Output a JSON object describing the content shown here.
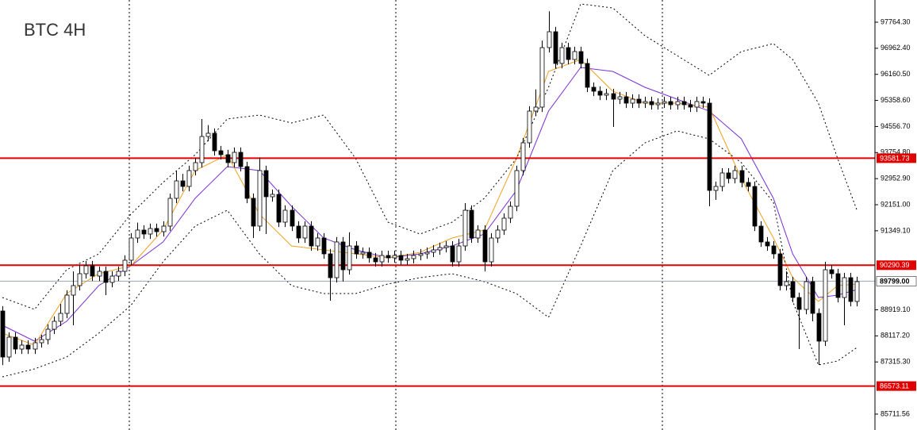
{
  "chart_data": {
    "type": "candlestick",
    "title": "BTC 4H",
    "open": [
      88882,
      87467,
      88077,
      87711,
      87833,
      87711,
      87906,
      88004,
      88321,
      88565,
      88809,
      89370,
      89663,
      90029,
      90273,
      89956,
      90102,
      89761,
      89956,
      90102,
      90444,
      91127,
      91371,
      91249,
      91420,
      91322,
      91493,
      92347,
      92884,
      92713,
      93201,
      93445,
      94250,
      94348,
      93811,
      93689,
      93445,
      93762,
      93323,
      92347,
      91493,
      93201,
      92396,
      92469,
      91615,
      91981,
      91493,
      91127,
      91493,
      90883,
      91127,
      90639,
      89907,
      91005,
      90151,
      90883,
      90639,
      90688,
      90517,
      90395,
      90590,
      90517,
      90590,
      90444,
      90493,
      90590,
      90639,
      90688,
      90761,
      90834,
      90883,
      90395,
      90883,
      91981,
      91127,
      91371,
      90395,
      91127,
      91371,
      91737,
      92103,
      93201,
      94055,
      95031,
      95153,
      96983,
      97471,
      96495,
      96983,
      96617,
      96861,
      96495,
      95763,
      95641,
      95519,
      95568,
      95397,
      95470,
      95275,
      95397,
      95275,
      95324,
      95226,
      95275,
      95324,
      95226,
      95324,
      95226,
      95153,
      95324,
      95275,
      92591,
      92713,
      93128,
      92957,
      93201,
      92835,
      92713,
      91493,
      91005,
      90883,
      90639,
      89663,
      89785,
      89297,
      88931,
      89785,
      88809,
      87955,
      90151,
      90029,
      89297,
      89907,
      89175
    ],
    "high": [
      89032,
      88227,
      88227,
      87983,
      87983,
      88056,
      88154,
      88471,
      88715,
      89100,
      89520,
      90100,
      90300,
      90423,
      90423,
      90252,
      90252,
      90106,
      90252,
      90594,
      91277,
      91600,
      91521,
      91570,
      91570,
      91643,
      92497,
      93201,
      93100,
      93351,
      93595,
      94787,
      94600,
      94498,
      93961,
      93839,
      93912,
      93912,
      93473,
      92497,
      93600,
      93351,
      92619,
      92619,
      92131,
      92131,
      91643,
      91643,
      91643,
      91277,
      91277,
      90789,
      91155,
      91155,
      91300,
      91033,
      90838,
      90838,
      90667,
      90740,
      90740,
      90740,
      90740,
      90643,
      90740,
      90789,
      90838,
      90911,
      90984,
      91033,
      91033,
      91100,
      92200,
      92131,
      91521,
      91521,
      91277,
      91521,
      91887,
      92253,
      93351,
      94205,
      95181,
      95700,
      97200,
      98100,
      97621,
      97133,
      97133,
      97011,
      97011,
      96645,
      95913,
      95791,
      95718,
      95718,
      95620,
      95620,
      95547,
      95547,
      95474,
      95474,
      95425,
      95474,
      95474,
      95474,
      95474,
      95376,
      95474,
      95474,
      95425,
      92863,
      93278,
      93278,
      93351,
      93351,
      92985,
      92863,
      91643,
      91155,
      91033,
      90789,
      90100,
      89935,
      89447,
      89935,
      89935,
      88959,
      90395,
      90301,
      90179,
      90057,
      90057,
      89935
    ],
    "low": [
      87217,
      87317,
      87561,
      87561,
      87561,
      87561,
      87756,
      87854,
      88171,
      88415,
      88659,
      88443,
      89513,
      89879,
      89806,
      89806,
      89370,
      89611,
      89806,
      89952,
      90294,
      90977,
      91099,
      91099,
      91172,
      91172,
      91343,
      92197,
      92563,
      92563,
      93051,
      93295,
      94100,
      93661,
      93539,
      93295,
      93295,
      93173,
      92197,
      91127,
      91343,
      91249,
      92246,
      91465,
      91465,
      91343,
      90977,
      90977,
      90733,
      90733,
      90489,
      89200,
      89757,
      89785,
      90001,
      90489,
      90489,
      90367,
      90245,
      90245,
      90367,
      90367,
      90294,
      90294,
      90343,
      90440,
      90489,
      90538,
      90611,
      90684,
      90245,
      90245,
      90733,
      90977,
      90977,
      90100,
      90245,
      90977,
      91221,
      91587,
      91953,
      93051,
      93905,
      94881,
      95003,
      96833,
      96345,
      96345,
      96467,
      96467,
      96345,
      95613,
      95491,
      95369,
      95369,
      94543,
      95247,
      95125,
      95125,
      95125,
      95125,
      95076,
      95076,
      95125,
      95076,
      95076,
      95076,
      95003,
      95003,
      95125,
      92103,
      92300,
      92563,
      92807,
      92807,
      92685,
      92563,
      91343,
      90855,
      90733,
      90489,
      89513,
      89513,
      89147,
      87711,
      88781,
      88565,
      87223,
      87805,
      89879,
      89147,
      88443,
      89025,
      89025
    ],
    "close": [
      87467,
      88077,
      87711,
      87833,
      87711,
      87906,
      88004,
      88321,
      88565,
      88809,
      89370,
      89663,
      90029,
      90273,
      89956,
      90102,
      89761,
      89956,
      90102,
      90444,
      91127,
      91371,
      91249,
      91420,
      91322,
      91493,
      92347,
      92884,
      92713,
      93201,
      93445,
      94250,
      94348,
      93811,
      93689,
      93445,
      93762,
      93323,
      92347,
      91493,
      93201,
      92396,
      92469,
      91615,
      91981,
      91493,
      91127,
      91493,
      90883,
      91127,
      90639,
      89907,
      91005,
      90151,
      90883,
      90639,
      90688,
      90517,
      90395,
      90590,
      90517,
      90590,
      90444,
      90493,
      90590,
      90639,
      90688,
      90761,
      90834,
      90883,
      90395,
      90883,
      91981,
      91127,
      91371,
      90395,
      91127,
      91371,
      91737,
      92103,
      93201,
      94055,
      95031,
      95153,
      96983,
      97471,
      96495,
      96983,
      96617,
      96861,
      96495,
      95763,
      95641,
      95519,
      95568,
      95397,
      95470,
      95275,
      95397,
      95275,
      95324,
      95226,
      95275,
      95324,
      95226,
      95324,
      95226,
      95153,
      95324,
      95275,
      92591,
      92713,
      93128,
      92957,
      93201,
      92835,
      92713,
      91493,
      91005,
      90883,
      90639,
      89663,
      89785,
      89297,
      88931,
      89785,
      88809,
      87955,
      90151,
      90029,
      89297,
      89907,
      89175,
      89785
    ],
    "up_color": "#ffffff",
    "down_color": "#000000",
    "overlay_x": [
      0,
      5,
      10,
      15,
      20,
      25,
      30,
      35,
      40,
      45,
      50,
      55,
      60,
      65,
      70,
      75,
      80,
      85,
      90,
      95,
      100,
      105,
      110,
      115,
      120,
      123,
      127,
      130,
      133
    ],
    "overlays": [
      {
        "color": "#7b2fd6",
        "style": "solid",
        "values": [
          88443,
          87955,
          88565,
          89663,
          90273,
          91005,
          92347,
          93323,
          93201,
          92103,
          91127,
          90761,
          90517,
          90639,
          90883,
          91249,
          92591,
          95031,
          96373,
          96251,
          95763,
          95397,
          95031,
          94177,
          92347,
          90639,
          89297,
          89370,
          89541
        ]
      },
      {
        "color": "#f0a020",
        "style": "solid",
        "values": [
          88199,
          87833,
          89419,
          90029,
          90273,
          91371,
          93201,
          93689,
          91859,
          90883,
          90761,
          90639,
          90517,
          90688,
          91127,
          91371,
          93567,
          96251,
          96617,
          95641,
          95275,
          95275,
          95153,
          92957,
          91127,
          89907,
          89175,
          89663,
          89712
        ]
      },
      {
        "color": "#000000",
        "style": "dotted",
        "values": [
          89297,
          88931,
          90151,
          90639,
          91859,
          92835,
          93689,
          94787,
          94909,
          94665,
          94909,
          93567,
          91615,
          91249,
          91615,
          92347,
          93567,
          95763,
          98325,
          98203,
          97349,
          96739,
          96129,
          96861,
          97105,
          96617,
          95275,
          93567,
          91981
        ]
      },
      {
        "color": "#000000",
        "style": "dotted",
        "values": [
          86857,
          87101,
          87467,
          88199,
          89053,
          90395,
          91493,
          91981,
          90639,
          89663,
          89419,
          89419,
          89712,
          89907,
          90029,
          89785,
          89419,
          88687,
          90883,
          93201,
          94055,
          94421,
          94177,
          93445,
          92225,
          89175,
          87223,
          87345,
          87760
        ]
      }
    ],
    "levels": [
      {
        "value": 93581.73,
        "color": "#e00000"
      },
      {
        "value": 90290.39,
        "color": "#e00000"
      },
      {
        "value": 86573.11,
        "color": "#e00000"
      },
      {
        "value": 89799,
        "label": "89799.00",
        "color": "#9aa6b2"
      }
    ],
    "ylim": [
      85222,
      98447
    ],
    "yticks": [
      {
        "value": 97764.3,
        "label": "97764.30"
      },
      {
        "value": 96962.4,
        "label": "96962.40"
      },
      {
        "value": 96160.5,
        "label": "96160.50"
      },
      {
        "value": 95358.6,
        "label": "95358.60"
      },
      {
        "value": 94556.7,
        "label": "94556.70"
      },
      {
        "value": 93754.8,
        "label": "93754.80"
      },
      {
        "value": 92952.9,
        "label": "92952.90"
      },
      {
        "value": 92151,
        "label": "92151.00"
      },
      {
        "value": 91349.1,
        "label": "91349.10"
      },
      {
        "value": 88919.1,
        "label": "88919.10"
      },
      {
        "value": 88117.2,
        "label": "88117.20"
      },
      {
        "value": 87315.3,
        "label": "87315.30"
      },
      {
        "value": 85711.56,
        "label": "85711.56"
      }
    ]
  }
}
